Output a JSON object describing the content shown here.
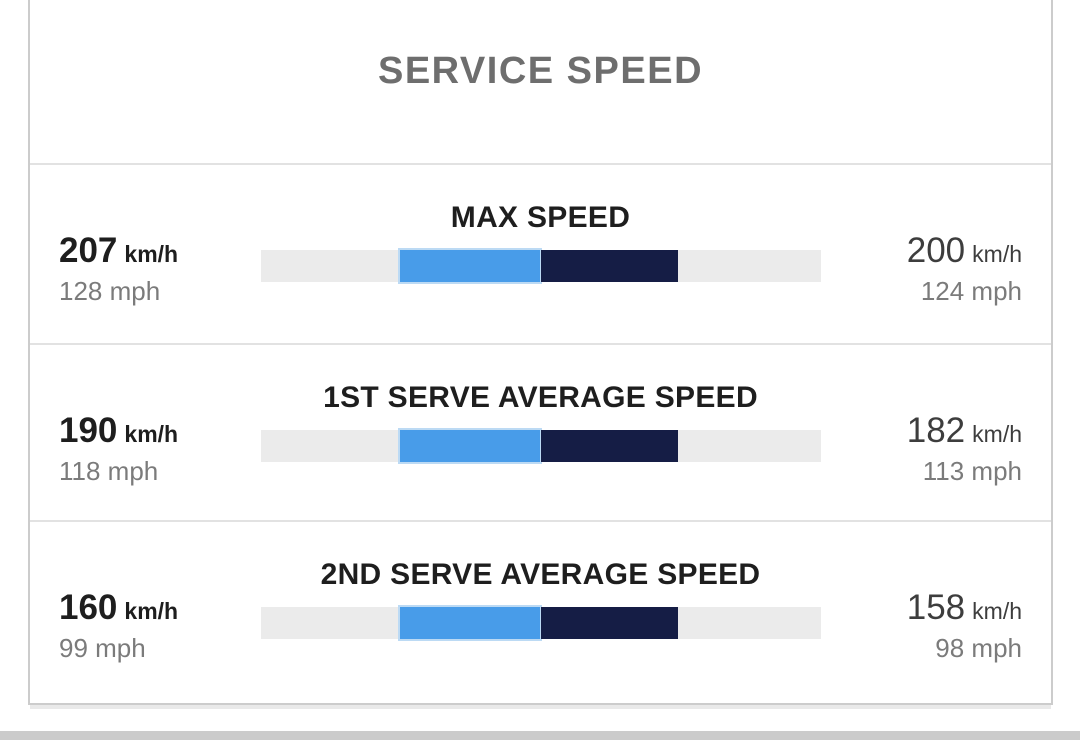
{
  "card": {
    "title": "SERVICE SPEED",
    "rows": [
      {
        "label": "MAX SPEED",
        "left": {
          "value": "207",
          "unit": "km/h",
          "secondary": "128 mph"
        },
        "right": {
          "value": "200",
          "unit": "km/h",
          "secondary": "124 mph"
        }
      },
      {
        "label": "1ST SERVE AVERAGE SPEED",
        "left": {
          "value": "190",
          "unit": "km/h",
          "secondary": "118 mph"
        },
        "right": {
          "value": "182",
          "unit": "km/h",
          "secondary": "113 mph"
        }
      },
      {
        "label": "2ND SERVE AVERAGE SPEED",
        "left": {
          "value": "160",
          "unit": "km/h",
          "secondary": "99 mph"
        },
        "right": {
          "value": "158",
          "unit": "km/h",
          "secondary": "98 mph"
        }
      }
    ]
  },
  "colors": {
    "left_player_bar": "#489ce9",
    "left_player_bar_border": "#bcdaf4",
    "right_player_bar": "#151d45",
    "bar_background": "#ebebeb",
    "title_gray": "#6e6e6e",
    "primary_text": "#1e1e1e",
    "secondary_text": "#7b7b7b",
    "divider": "#e2e2e2",
    "card_border": "#cccccc",
    "bottom_band": "#cbcbcb"
  },
  "chart_data": {
    "type": "bar",
    "title": "SERVICE SPEED",
    "categories": [
      "MAX SPEED",
      "1ST SERVE AVERAGE SPEED",
      "2ND SERVE AVERAGE SPEED"
    ],
    "series": [
      {
        "name": "left-player",
        "color": "#489ce9",
        "values_kmh": [
          207,
          190,
          160
        ],
        "values_mph": [
          128,
          118,
          99
        ]
      },
      {
        "name": "right-player",
        "color": "#151d45",
        "values_kmh": [
          200,
          182,
          158
        ],
        "values_mph": [
          124,
          113,
          98
        ]
      }
    ],
    "layout": "paired horizontal segments extending from bar center on gray track; left player segment light blue, right player segment dark navy; values labeled at row ends in km/h with mph beneath",
    "legend": "none",
    "grid": false
  }
}
